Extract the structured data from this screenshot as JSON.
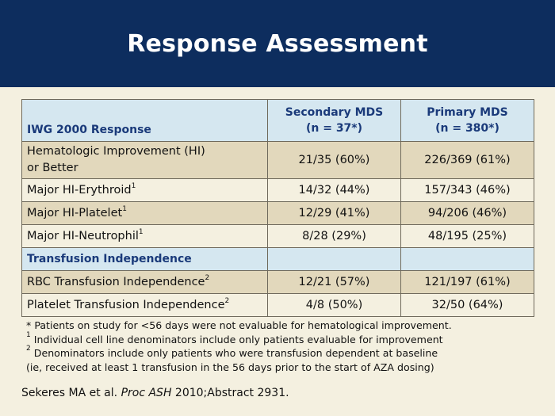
{
  "title": "Response Assessment",
  "table": {
    "headers": {
      "col1": "IWG 2000 Response",
      "col2_line1": "Secondary MDS",
      "col2_line2": "(n = 37*)",
      "col3_line1": "Primary MDS",
      "col3_line2": "(n = 380*)"
    },
    "rows": [
      {
        "label_line1": "Hematologic Improvement (HI)",
        "label_line2": "or Better",
        "secondary": "21/35 (60%)",
        "primary": "226/369 (61%)"
      },
      {
        "label": "Major HI-Erythroid",
        "sup": "1",
        "secondary": "14/32 (44%)",
        "primary": "157/343 (46%)"
      },
      {
        "label": "Major HI-Platelet",
        "sup": "1",
        "secondary": "12/29 (41%)",
        "primary": "94/206 (46%)"
      },
      {
        "label": "Major HI-Neutrophil",
        "sup": "1",
        "secondary": "8/28 (29%)",
        "primary": "48/195 (25%)"
      }
    ],
    "section": "Transfusion Independence",
    "rows2": [
      {
        "label": "RBC Transfusion Independence",
        "sup": "2",
        "secondary": "12/21 (57%)",
        "primary": "121/197 (61%)"
      },
      {
        "label": "Platelet Transfusion Independence",
        "sup": "2",
        "secondary": "4/8 (50%)",
        "primary": "32/50 (64%)"
      }
    ]
  },
  "footnotes": [
    {
      "mark": "*",
      "text": "Patients on study for <56 days were not evaluable for hematological improvement."
    },
    {
      "mark": "1",
      "text": "Individual cell line denominators include only patients evaluable for improvement"
    },
    {
      "mark": "2",
      "text": "Denominators include only patients who were transfusion dependent at baseline"
    },
    {
      "mark": "",
      "text": "(ie, received at least 1 transfusion in the 56 days prior to the start of AZA dosing)"
    }
  ],
  "citation": {
    "authors": "Sekeres MA et al.",
    "journal": "Proc ASH",
    "rest": "2010;Abstract 2931."
  }
}
